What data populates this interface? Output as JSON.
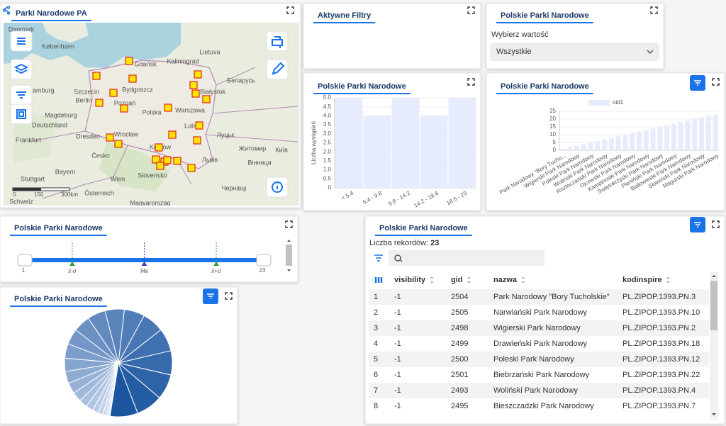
{
  "map": {
    "title": "Parki Narodowe PA",
    "labels": [
      "Danmark",
      "København",
      "Gdańsk",
      "Kaliningrad",
      "Lietuva",
      "Hamburg",
      "Szczecin",
      "Bydgoszcz",
      "Białystok",
      "Berlin",
      "Poznań",
      "Polska",
      "Warszawa",
      "Беларусь",
      "Magdeburg",
      "Deutschland",
      "Lublin",
      "Dresden",
      "Wrocław",
      "Frankfurt",
      "Луцьк",
      "Česko",
      "Kraków",
      "Житомир",
      "Київ",
      "Львів",
      "Slovensko",
      "Вінниця",
      "Stuttgart",
      "Bayern",
      "Wien",
      "Österreich",
      "Magyarország",
      "Schweiz",
      "Чернівці"
    ],
    "scale": [
      "0",
      "150",
      "300km"
    ]
  },
  "filters": {
    "title": "Aktywne Filtry"
  },
  "selector": {
    "title": "Polskie Parki Narodowe",
    "label": "Wybierz wartość",
    "value": "Wszystkie"
  },
  "chart_data": [
    {
      "type": "bar",
      "title": "Polskie Parki Narodowe",
      "y_label": "Liczba wystąpień",
      "categories": [
        "< 5.4",
        "5.4 - 9.8",
        "9.8 - 14.2",
        "14.2 - 18.6",
        "18.6 - 23"
      ],
      "values": [
        5,
        4,
        5,
        4,
        5
      ],
      "color": "#e6ecfb",
      "ylim": [
        0,
        5
      ],
      "yticks": [
        0,
        0.5,
        {
          "value": 1,
          "label": "1.0"
        },
        1.5,
        {
          "value": 2,
          "label": "2.0"
        },
        2.5,
        {
          "value": 3,
          "label": "3.0"
        },
        3.5,
        {
          "value": 4,
          "label": "4.0"
        },
        4.5,
        {
          "value": 5,
          "label": "5.0"
        }
      ],
      "grid": true
    },
    {
      "type": "bar",
      "title": "Polskie Parki Narodowe",
      "categories": [
        "Park Narodowy \"Bory Tucho...",
        null,
        "Wigierski Park Narodowy",
        null,
        "Poleski Park Narodowy",
        null,
        "Woliński Park Narodowy",
        null,
        "Roztoczański Park Narodowy",
        null,
        "Ojcowski Park Narodowy",
        null,
        "Kampinoski Park Narodowy",
        null,
        "Świętokrzyski Park Narodowy",
        null,
        "Pieniński Park Narodowy",
        null,
        "Białowieski Park Narodowy",
        null,
        "Słowiński Park Narodowy",
        null,
        "Magurski Park Narodowy"
      ],
      "series": [
        {
          "name": "oid1",
          "color": "#e6ecfb",
          "values": [
            1,
            2,
            3,
            4,
            5,
            6,
            7,
            8,
            9,
            10,
            11,
            12,
            13,
            14,
            15,
            16,
            17,
            18,
            19,
            20,
            21,
            22,
            23
          ]
        }
      ],
      "ylim": [
        0,
        25
      ],
      "yticks": [
        0,
        5,
        10,
        15,
        20,
        25
      ],
      "grid": true,
      "legend": "top"
    },
    {
      "type": "pie",
      "title": "Polskie Parki Narodowe",
      "values": [
        23,
        22,
        21,
        20,
        19,
        18,
        17,
        16,
        15,
        14,
        13,
        12,
        11,
        10,
        9,
        8,
        7,
        6,
        5,
        4,
        3,
        2,
        1
      ],
      "color_range": [
        "#1c569f",
        "#dde6f6"
      ]
    }
  ],
  "slider": {
    "title": "Polskie Parki Narodowe",
    "min": 1,
    "max": 23,
    "markers": [
      {
        "label": "x̄-σ",
        "value": 5.37,
        "color": "#2e9e3a"
      },
      {
        "label": "Me",
        "value": 12,
        "color": "#2a3fd0"
      },
      {
        "label": "x̄+σ",
        "value": 18.63,
        "color": "#2e9e3a"
      }
    ]
  },
  "table": {
    "title": "Polskie Parki Narodowe",
    "count_label": "Liczba rekordów:",
    "count": 23,
    "columns": [
      "visibility",
      "gid",
      "nazwa",
      "kodinspire"
    ],
    "rows": [
      [
        1,
        -1,
        2504,
        "Park Narodowy \"Bory Tucholskie\"",
        "PL.ZIPOP.1393.PN.3"
      ],
      [
        2,
        -1,
        2505,
        "Narwiański Park Narodowy",
        "PL.ZIPOP.1393.PN.10"
      ],
      [
        3,
        -1,
        2498,
        "Wigierski Park Narodowy",
        "PL.ZIPOP.1393.PN.2"
      ],
      [
        4,
        -1,
        2499,
        "Drawieński Park Narodowy",
        "PL.ZIPOP.1393.PN.18"
      ],
      [
        5,
        -1,
        2500,
        "Poleski Park Narodowy",
        "PL.ZIPOP.1393.PN.12"
      ],
      [
        6,
        -1,
        2501,
        "Biebrzański Park Narodowy",
        "PL.ZIPOP.1393.PN.22"
      ],
      [
        7,
        -1,
        2493,
        "Woliński Park Narodowy",
        "PL.ZIPOP.1393.PN.4"
      ],
      [
        8,
        -1,
        2495,
        "Bieszczadzki Park Narodowy",
        "PL.ZIPOP.1393.PN.7"
      ]
    ]
  }
}
